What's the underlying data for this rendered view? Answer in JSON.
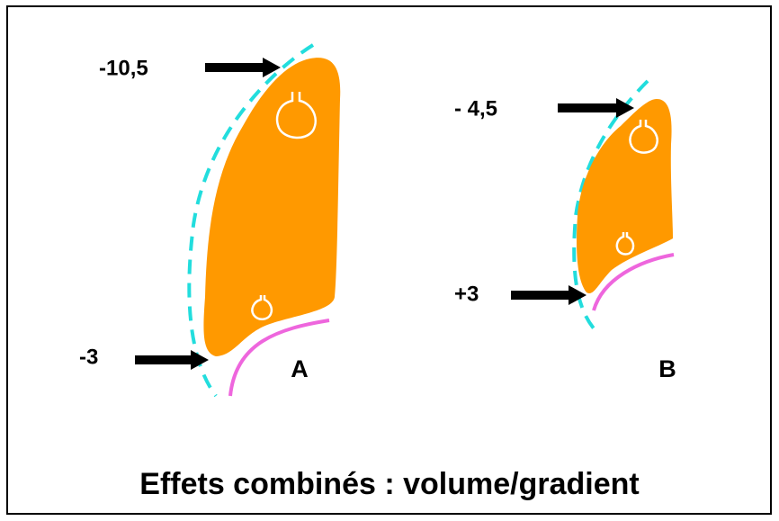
{
  "title": "Effets combinés : volume/gradient",
  "panels": [
    {
      "label": "A",
      "top_value": "-10,5",
      "bottom_value": "-3"
    },
    {
      "label": "B",
      "top_value": "- 4,5",
      "bottom_value": "+3"
    }
  ]
}
